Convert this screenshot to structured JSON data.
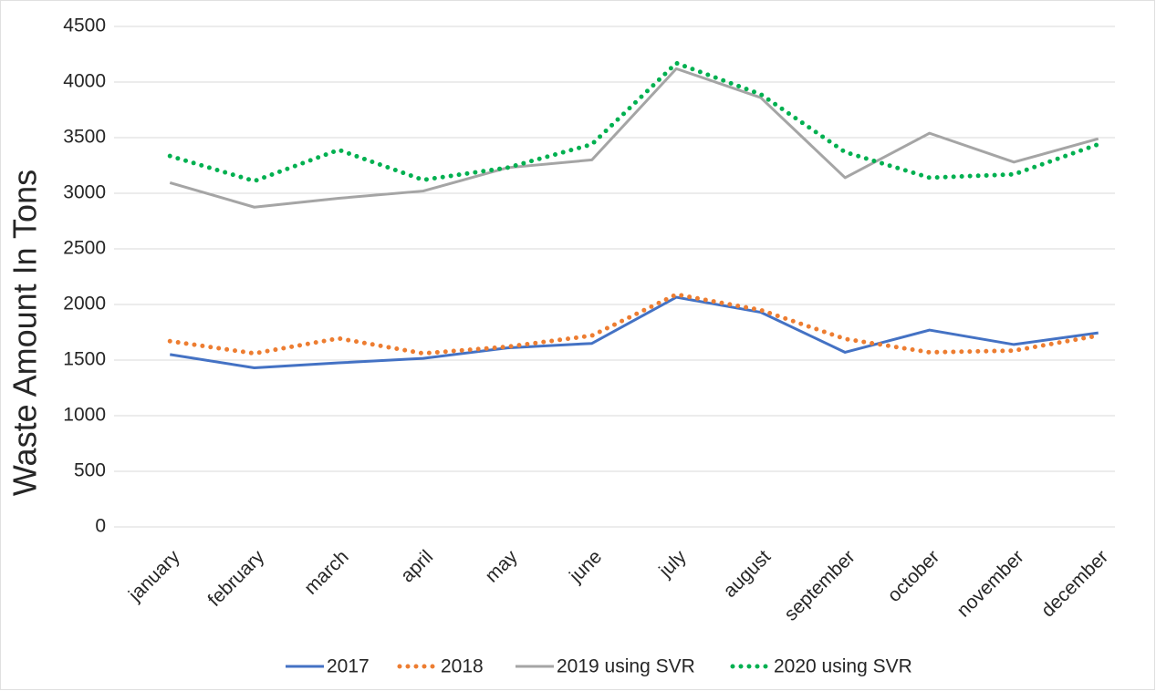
{
  "chart_data": {
    "type": "line",
    "y_label": "Waste Amount In Tons",
    "categories": [
      "january",
      "february",
      "march",
      "april",
      "may",
      "june",
      "july",
      "august",
      "september",
      "october",
      "november",
      "december"
    ],
    "series": [
      {
        "name": "2017",
        "color": "#4472c4",
        "style": "solid",
        "values": [
          1550,
          1430,
          1475,
          1515,
          1610,
          1650,
          2065,
          1930,
          1570,
          1770,
          1640,
          1745
        ]
      },
      {
        "name": "2018",
        "color": "#ed7d31",
        "style": "dotted",
        "values": [
          1670,
          1560,
          1695,
          1560,
          1620,
          1720,
          2090,
          1950,
          1690,
          1570,
          1585,
          1720
        ]
      },
      {
        "name": "2019 using SVR",
        "color": "#a5a5a5",
        "style": "solid",
        "values": [
          3095,
          2875,
          2955,
          3020,
          3230,
          3300,
          4120,
          3860,
          3140,
          3540,
          3280,
          3490
        ]
      },
      {
        "name": "2020 using SVR",
        "color": "#00b050",
        "style": "dotted",
        "values": [
          3335,
          3110,
          3390,
          3120,
          3230,
          3440,
          4170,
          3890,
          3370,
          3140,
          3170,
          3440
        ]
      }
    ],
    "ylim": [
      0,
      4500
    ],
    "yticks": [
      0,
      500,
      1000,
      1500,
      2000,
      2500,
      3000,
      3500,
      4000,
      4500
    ],
    "grid": true,
    "legend": "bottom"
  }
}
